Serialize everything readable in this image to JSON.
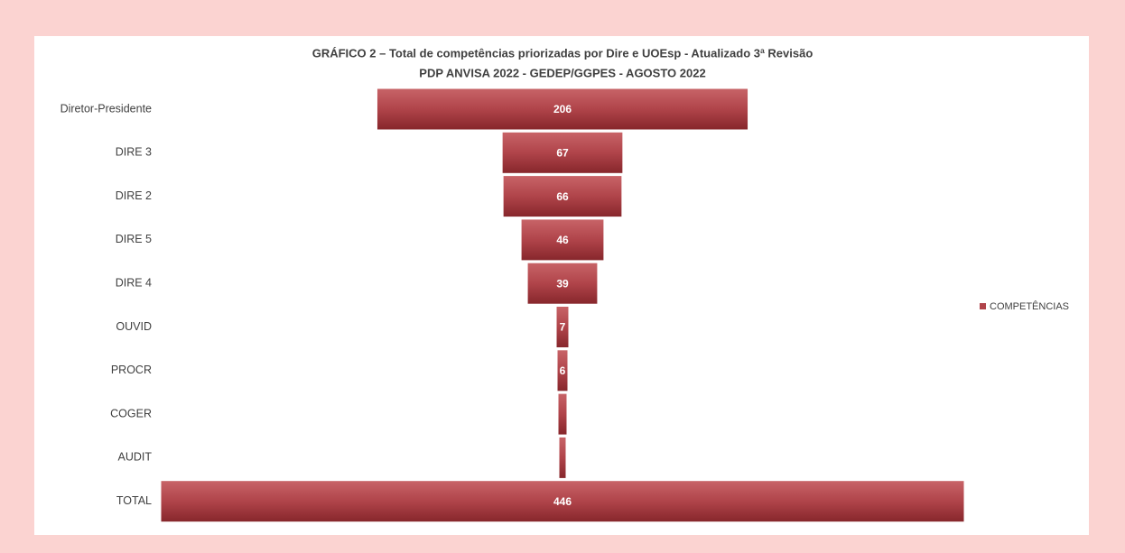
{
  "chart_data": {
    "type": "funnel",
    "title": "GRÁFICO 2 – Total de competências priorizadas por Dire e UOEsp - Atualizado 3ª Revisão",
    "subtitle": "PDP ANVISA 2022 - GEDEP/GGPES - AGOSTO 2022",
    "categories": [
      "Diretor-Presidente",
      "DIRE 3",
      "DIRE 2",
      "DIRE 5",
      "DIRE 4",
      "OUVID",
      "PROCR",
      "COGER",
      "AUDIT",
      "TOTAL"
    ],
    "series": [
      {
        "name": "COMPETÊNCIAS",
        "color": "#b0444a",
        "values": [
          206,
          67,
          66,
          46,
          39,
          7,
          6,
          5,
          4,
          446
        ]
      }
    ],
    "legend": "right"
  }
}
